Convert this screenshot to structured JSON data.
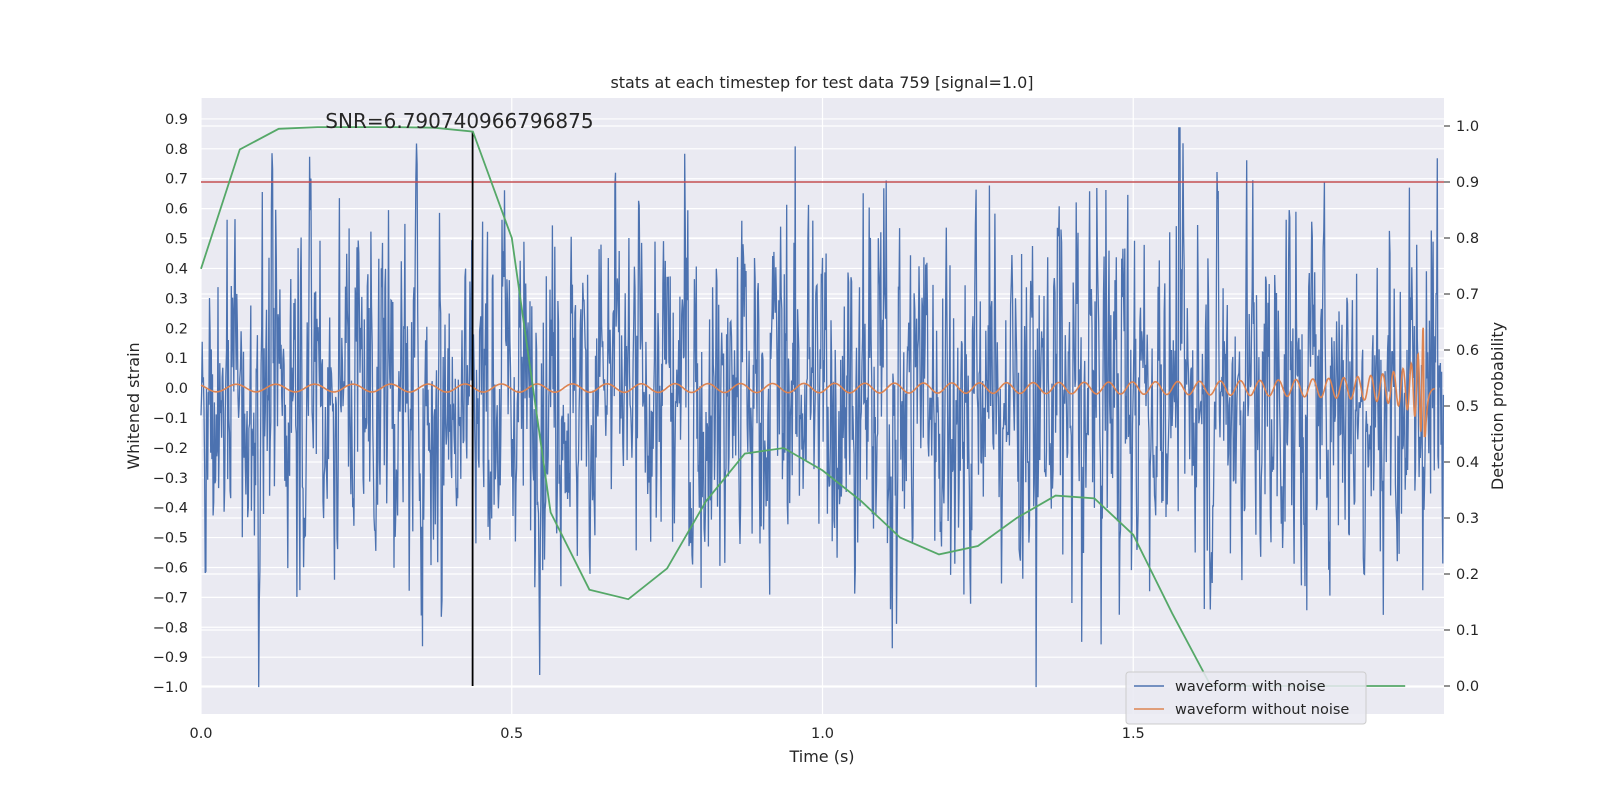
{
  "chart_data": {
    "type": "line",
    "title": "stats at each timestep for test data 759 [signal=1.0]",
    "xlabel": "Time (s)",
    "ylabel_left": "Whitened strain",
    "ylabel_right": "Detection probability",
    "xlim": [
      0.0,
      2.0
    ],
    "ylim_left": [
      -1.09,
      0.97
    ],
    "ylim_right": [
      -0.05,
      1.05
    ],
    "x_ticks": [
      "0.0",
      "0.5",
      "1.0",
      "1.5"
    ],
    "x_tick_values": [
      0.0,
      0.5,
      1.0,
      1.5
    ],
    "y_left_ticks": [
      "0.9",
      "0.8",
      "0.7",
      "0.6",
      "0.5",
      "0.4",
      "0.3",
      "0.2",
      "0.1",
      "0.0",
      "−0.1",
      "−0.2",
      "−0.3",
      "−0.4",
      "−0.5",
      "−0.6",
      "−0.7",
      "−0.8",
      "−0.9",
      "−1.0"
    ],
    "y_left_tick_values": [
      0.9,
      0.8,
      0.7,
      0.6,
      0.5,
      0.4,
      0.3,
      0.2,
      0.1,
      0.0,
      -0.1,
      -0.2,
      -0.3,
      -0.4,
      -0.5,
      -0.6,
      -0.7,
      -0.8,
      -0.9,
      -1.0
    ],
    "y_right_ticks": [
      "1.0",
      "0.9",
      "0.8",
      "0.7",
      "0.6",
      "0.5",
      "0.4",
      "0.3",
      "0.2",
      "0.1",
      "0.0"
    ],
    "y_right_tick_values": [
      1.0,
      0.9,
      0.8,
      0.7,
      0.6,
      0.5,
      0.4,
      0.3,
      0.2,
      0.1,
      0.0
    ],
    "annotation": "SNR=6.790740966796875",
    "annotation_x": 0.2,
    "annotation_y": 0.87,
    "threshold_probability": 0.9,
    "marker_time": 0.437,
    "series": [
      {
        "name": "waveform with noise",
        "color": "#4c72b0",
        "axis": "left",
        "description": "dense whitened noise, 2048 samples over 2 s, amplitude mostly within ±0.5 with spikes to about ±0.9",
        "samples": 2048,
        "typical_range": [
          -0.5,
          0.5
        ],
        "peak_range": [
          -1.0,
          0.87
        ]
      },
      {
        "name": "waveform without noise",
        "color": "#dd8452",
        "axis": "left",
        "description": "chirp signal growing in amplitude and frequency, merger near t = 1.97 s",
        "merger_time": 1.97,
        "peak_amplitude": 0.42
      },
      {
        "name": "",
        "color": "#55a868",
        "axis": "right",
        "x": [
          0.0,
          0.0625,
          0.125,
          0.1875,
          0.25,
          0.3125,
          0.375,
          0.4375,
          0.5,
          0.5625,
          0.625,
          0.6875,
          0.75,
          0.8125,
          0.875,
          0.9375,
          1.0,
          1.0625,
          1.125,
          1.1875,
          1.25,
          1.3125,
          1.375,
          1.4375,
          1.5,
          1.5625,
          1.625,
          1.6875,
          1.75,
          1.8125,
          1.875,
          1.9375
        ],
        "y": [
          0.745,
          0.958,
          0.995,
          0.998,
          0.998,
          0.998,
          0.997,
          0.99,
          0.8,
          0.31,
          0.172,
          0.155,
          0.21,
          0.33,
          0.415,
          0.425,
          0.385,
          0.33,
          0.265,
          0.235,
          0.25,
          0.3,
          0.34,
          0.335,
          0.27,
          0.13,
          0.0,
          0.0,
          0.0,
          0.0,
          0.0,
          0.0
        ]
      }
    ],
    "legend": {
      "placement": "lower-right",
      "entries": [
        {
          "label": "waveform with noise",
          "color": "#4c72b0"
        },
        {
          "label": "waveform without noise",
          "color": "#dd8452"
        }
      ]
    },
    "colors": {
      "plot_background": "#eaeaf2",
      "grid": "#ffffff",
      "threshold_line": "#c44e52",
      "marker_line": "#000000"
    }
  }
}
